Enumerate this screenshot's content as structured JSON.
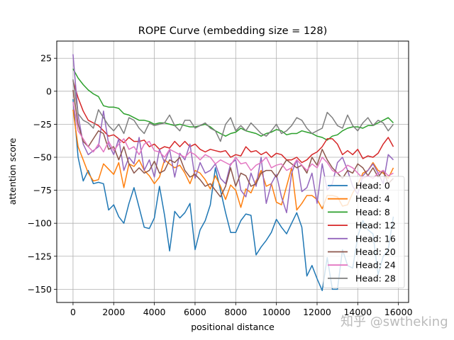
{
  "chart_data": {
    "type": "line",
    "title": "ROPE Curve (embedding size = 128)",
    "xlabel": "positional distance",
    "ylabel": "attention score",
    "xlim": [
      -800,
      16500
    ],
    "ylim": [
      -160,
      38
    ],
    "xticks": [
      0,
      2000,
      4000,
      6000,
      8000,
      10000,
      12000,
      14000,
      16000
    ],
    "xtick_labels": [
      "0",
      "2000",
      "4000",
      "6000",
      "8000",
      "10000",
      "12000",
      "14000",
      "16000"
    ],
    "yticks": [
      25,
      0,
      -25,
      -50,
      -75,
      -100,
      -125,
      -150
    ],
    "ytick_labels": [
      "25",
      "0",
      "−25",
      "−50",
      "−75",
      "−100",
      "−125",
      "−150"
    ],
    "grid": true,
    "legend_position": "lower-right",
    "x_step": 250,
    "series": [
      {
        "name": "Head: 0",
        "label": "Head: 0",
        "color": "#1f77b4",
        "values": [
          -6,
          -50,
          -68,
          -60,
          -70,
          -69,
          -70,
          -90,
          -86,
          -95,
          -100,
          -85,
          -73,
          -88,
          -103,
          -104,
          -96,
          -72,
          -94,
          -121,
          -91,
          -96,
          -92,
          -85,
          -120,
          -105,
          -98,
          -86,
          -58,
          -75,
          -92,
          -107,
          -107,
          -98,
          -93,
          -94,
          -124,
          -118,
          -113,
          -107,
          -97,
          -103,
          -108,
          -100,
          -92,
          -103,
          -140,
          -132,
          -142,
          -151,
          -126,
          -150,
          -150,
          -120,
          -132,
          -134,
          -110,
          -98,
          -105,
          -108,
          -139,
          -125,
          -120,
          -95
        ]
      },
      {
        "name": "Head: 4",
        "label": "Head: 4",
        "color": "#ff7f0e",
        "values": [
          -14,
          -42,
          -52,
          -62,
          -68,
          -67,
          -55,
          -59,
          -63,
          -54,
          -73,
          -55,
          -57,
          -52,
          -60,
          -64,
          -70,
          -65,
          -52,
          -55,
          -58,
          -56,
          -62,
          -70,
          -60,
          -62,
          -67,
          -74,
          -64,
          -72,
          -82,
          -71,
          -75,
          -88,
          -74,
          -77,
          -68,
          -60,
          -72,
          -70,
          -84,
          -86,
          -72,
          -58,
          -90,
          -85,
          -79,
          -79,
          -82,
          -89,
          -79,
          -79,
          -80,
          -87,
          -86,
          -77,
          -71,
          -62,
          -60,
          -54,
          -60,
          -62,
          -66,
          -58
        ]
      },
      {
        "name": "Head: 8",
        "label": "Head: 8",
        "color": "#2ca02c",
        "values": [
          17,
          10,
          5,
          1,
          -2,
          -4,
          -11,
          -12,
          -12,
          -13,
          -17,
          -18,
          -20,
          -22,
          -22,
          -23,
          -25,
          -24,
          -24,
          -25,
          -26,
          -25,
          -26,
          -27,
          -27,
          -26,
          -25,
          -27,
          -30,
          -32,
          -34,
          -32,
          -31,
          -28,
          -30,
          -31,
          -32,
          -34,
          -32,
          -31,
          -29,
          -30,
          -33,
          -32,
          -32,
          -30,
          -31,
          -32,
          -34,
          -35,
          -37,
          -34,
          -33,
          -30,
          -28,
          -27,
          -27,
          -28,
          -26,
          -26,
          -24,
          -22,
          -20,
          -24
        ]
      },
      {
        "name": "Head: 12",
        "label": "Head: 12",
        "color": "#d62728",
        "values": [
          8,
          -5,
          -15,
          -22,
          -24,
          -26,
          -30,
          -34,
          -33,
          -36,
          -39,
          -35,
          -38,
          -38,
          -37,
          -42,
          -40,
          -44,
          -42,
          -43,
          -38,
          -42,
          -38,
          -42,
          -40,
          -44,
          -46,
          -44,
          -45,
          -46,
          -45,
          -50,
          -48,
          -49,
          -42,
          -46,
          -45,
          -48,
          -46,
          -50,
          -47,
          -48,
          -52,
          -52,
          -50,
          -54,
          -52,
          -48,
          -46,
          -42,
          -36,
          -36,
          -40,
          -48,
          -45,
          -48,
          -44,
          -51,
          -49,
          -50,
          -47,
          -40,
          -35,
          -42
        ]
      },
      {
        "name": "Head: 16",
        "label": "Head: 16",
        "color": "#9467bd",
        "values": [
          28,
          -18,
          -40,
          -48,
          -45,
          -42,
          -15,
          -40,
          -48,
          -36,
          -60,
          -50,
          -55,
          -35,
          -60,
          -52,
          -65,
          -44,
          -54,
          -44,
          -65,
          -47,
          -52,
          -40,
          -66,
          -54,
          -62,
          -60,
          -55,
          -66,
          -70,
          -55,
          -52,
          -75,
          -80,
          -62,
          -72,
          -50,
          -85,
          -70,
          -63,
          -80,
          -92,
          -62,
          -52,
          -76,
          -73,
          -62,
          -85,
          -55,
          -75,
          -70,
          -54,
          -50,
          -60,
          -72,
          -78,
          -64,
          -60,
          -55,
          -62,
          -70,
          -48,
          -52
        ]
      },
      {
        "name": "Head: 20",
        "label": "Head: 20",
        "color": "#8c564b",
        "values": [
          1,
          -25,
          -38,
          -42,
          -36,
          -30,
          -32,
          -44,
          -42,
          -52,
          -42,
          -55,
          -62,
          -58,
          -62,
          -60,
          -53,
          -62,
          -60,
          -52,
          -54,
          -50,
          -60,
          -65,
          -63,
          -67,
          -72,
          -70,
          -75,
          -80,
          -72,
          -58,
          -72,
          -62,
          -64,
          -72,
          -70,
          -62,
          -60,
          -60,
          -65,
          -58,
          -52,
          -55,
          -58,
          -56,
          -62,
          -50,
          -56,
          -44,
          -52,
          -58,
          -62,
          -66,
          -60,
          -62,
          -55,
          -58,
          -64,
          -58,
          -65,
          -60,
          -70,
          -66
        ]
      },
      {
        "name": "Head: 24",
        "label": "Head: 24",
        "color": "#e377c2",
        "values": [
          -8,
          -30,
          -36,
          -42,
          -46,
          -40,
          -46,
          -38,
          -45,
          -40,
          -36,
          -44,
          -42,
          -48,
          -40,
          -38,
          -45,
          -46,
          -50,
          -44,
          -46,
          -48,
          -50,
          -46,
          -48,
          -52,
          -48,
          -50,
          -55,
          -52,
          -54,
          -56,
          -50,
          -55,
          -54,
          -60,
          -56,
          -54,
          -50,
          -58,
          -56,
          -55,
          -60,
          -58,
          -52,
          -56,
          -60,
          -55,
          -58,
          -50,
          -54,
          -60,
          -62,
          -60,
          -56,
          -58,
          -62,
          -66,
          -64,
          -66,
          -62,
          -60,
          -64,
          -62
        ]
      },
      {
        "name": "Head: 28",
        "label": "Head: 28",
        "color": "#7f7f7f",
        "values": [
          9,
          -17,
          -22,
          -24,
          -28,
          -14,
          -20,
          -26,
          -30,
          -25,
          -32,
          -20,
          -22,
          -28,
          -32,
          -24,
          -26,
          -25,
          -24,
          -18,
          -26,
          -30,
          -22,
          -22,
          -28,
          -26,
          -24,
          -28,
          -30,
          -38,
          -25,
          -20,
          -30,
          -26,
          -30,
          -24,
          -28,
          -32,
          -34,
          -30,
          -25,
          -32,
          -30,
          -26,
          -20,
          -22,
          -28,
          -32,
          -30,
          -28,
          -16,
          -20,
          -26,
          -28,
          -18,
          -26,
          -30,
          -24,
          -20,
          -26,
          -22,
          -24,
          -30,
          -25
        ]
      }
    ]
  },
  "watermark": "知乎 @swtheking"
}
